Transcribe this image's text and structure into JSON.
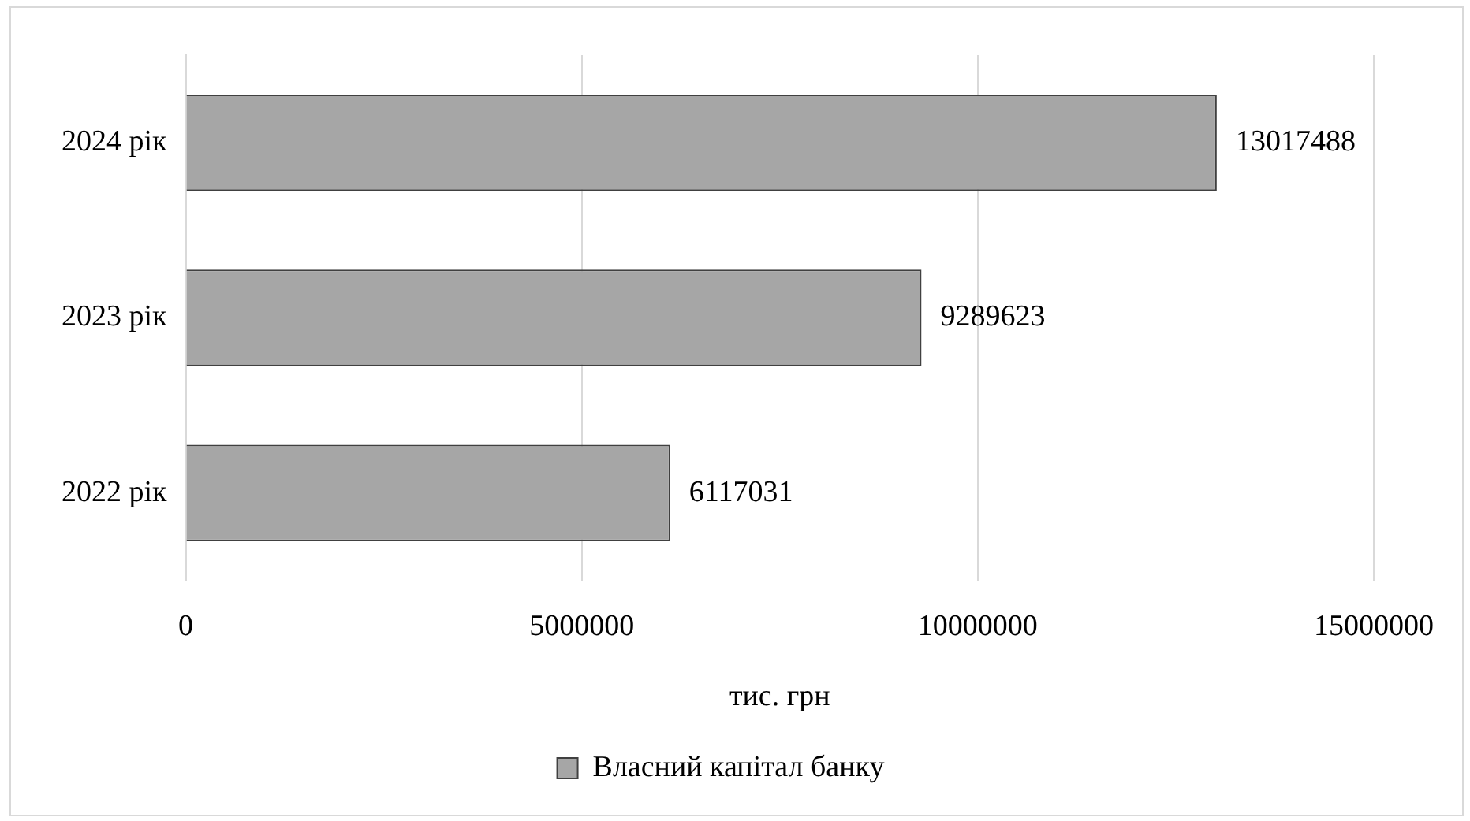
{
  "chart_data": {
    "type": "bar",
    "orientation": "horizontal",
    "xlabel": "тис. грн",
    "categories": [
      "2024 рік",
      "2023 рік",
      "2022 рік"
    ],
    "series": [
      {
        "name": "Власний капітал банку",
        "color": "#a6a6a6",
        "values": [
          13017488,
          9289623,
          6117031
        ]
      }
    ],
    "xlim": [
      0,
      15000000
    ],
    "xticks": [
      0,
      5000000,
      10000000,
      15000000
    ],
    "grid": "x",
    "legend": "bottom",
    "data_labels": true
  }
}
